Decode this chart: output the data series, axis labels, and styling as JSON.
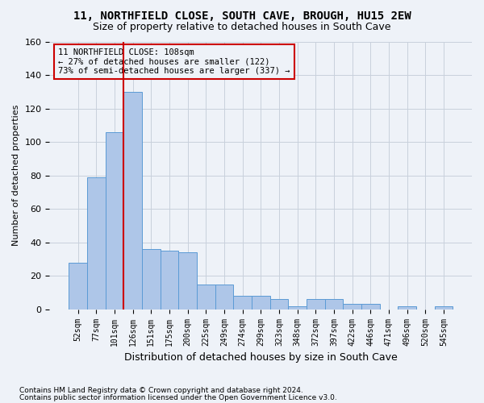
{
  "title": "11, NORTHFIELD CLOSE, SOUTH CAVE, BROUGH, HU15 2EW",
  "subtitle": "Size of property relative to detached houses in South Cave",
  "xlabel": "Distribution of detached houses by size in South Cave",
  "ylabel": "Number of detached properties",
  "bar_values": [
    28,
    79,
    106,
    130,
    36,
    35,
    34,
    15,
    15,
    8,
    8,
    6,
    2,
    6,
    6,
    3,
    3,
    0,
    2,
    0,
    2
  ],
  "categories": [
    "52sqm",
    "77sqm",
    "101sqm",
    "126sqm",
    "151sqm",
    "175sqm",
    "200sqm",
    "225sqm",
    "249sqm",
    "274sqm",
    "299sqm",
    "323sqm",
    "348sqm",
    "372sqm",
    "397sqm",
    "422sqm",
    "446sqm",
    "471sqm",
    "496sqm",
    "520sqm",
    "545sqm"
  ],
  "bar_color": "#aec6e8",
  "bar_edge_color": "#5b9bd5",
  "grid_color": "#c8d0dc",
  "annotation_box_color": "#cc0000",
  "property_line_color": "#cc0000",
  "property_bin_index": 2,
  "annotation_line1": "11 NORTHFIELD CLOSE: 108sqm",
  "annotation_line2": "← 27% of detached houses are smaller (122)",
  "annotation_line3": "73% of semi-detached houses are larger (337) →",
  "footer1": "Contains HM Land Registry data © Crown copyright and database right 2024.",
  "footer2": "Contains public sector information licensed under the Open Government Licence v3.0.",
  "ylim": [
    0,
    160
  ],
  "yticks": [
    0,
    20,
    40,
    60,
    80,
    100,
    120,
    140,
    160
  ],
  "background_color": "#eef2f8"
}
